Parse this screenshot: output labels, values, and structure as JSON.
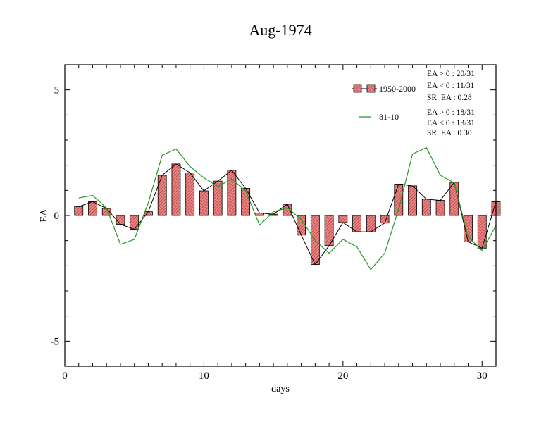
{
  "chart_data": {
    "type": "bar",
    "title": "Aug-1974",
    "xlabel": "days",
    "ylabel": "EA",
    "xlim": [
      0,
      31
    ],
    "ylim": [
      -6,
      6
    ],
    "x_ticks": [
      0,
      10,
      20,
      30
    ],
    "y_ticks": [
      -5,
      0,
      5
    ],
    "x": [
      1,
      2,
      3,
      4,
      5,
      6,
      7,
      8,
      9,
      10,
      11,
      12,
      13,
      14,
      15,
      16,
      17,
      18,
      19,
      20,
      21,
      22,
      23,
      24,
      25,
      26,
      27,
      28,
      29,
      30,
      31
    ],
    "series": [
      {
        "name": "1950-2000",
        "kind": "bar+line",
        "bar_color": "#f08080",
        "line_color": "#000000",
        "values": [
          0.35,
          0.55,
          0.28,
          -0.35,
          -0.55,
          0.15,
          1.6,
          2.05,
          1.7,
          0.98,
          1.37,
          1.8,
          1.08,
          0.1,
          0.05,
          0.45,
          -0.78,
          -1.95,
          -1.2,
          -0.28,
          -0.65,
          -0.65,
          -0.3,
          1.25,
          1.18,
          0.65,
          0.6,
          1.32,
          -1.05,
          -1.3,
          0.55
        ]
      },
      {
        "name": "81-10",
        "kind": "line",
        "line_color": "#229922",
        "values": [
          0.7,
          0.8,
          0.3,
          -1.15,
          -0.95,
          0.5,
          2.4,
          2.65,
          1.95,
          1.5,
          1.15,
          1.45,
          0.98,
          -0.38,
          0.15,
          0.3,
          -0.15,
          -1.0,
          -1.5,
          -0.95,
          -1.25,
          -2.15,
          -1.5,
          0.25,
          2.45,
          2.7,
          1.6,
          1.3,
          -0.85,
          -1.4,
          -0.4
        ]
      }
    ],
    "stats": [
      [
        "EA > 0 : 20/31",
        "EA < 0 : 11/31",
        "SR. EA :  0.28"
      ],
      [
        "EA > 0 : 18/31",
        "EA < 0 : 13/31",
        "SR. EA :  0.30"
      ]
    ],
    "legend_position": "top-right"
  }
}
